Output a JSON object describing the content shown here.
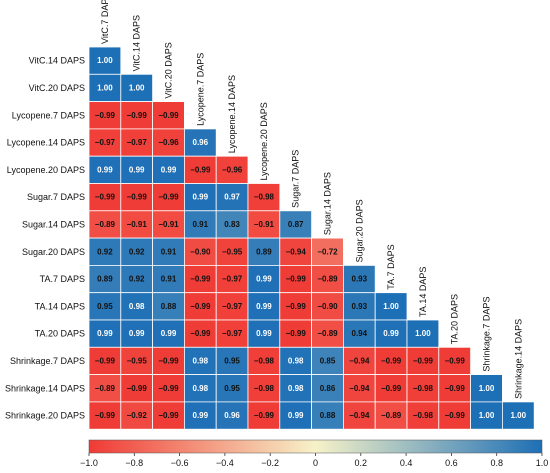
{
  "chart_data": {
    "type": "heatmap",
    "variables": [
      "VitC.7 DAPS",
      "VitC.14 DAPS",
      "VitC.20 DAPS",
      "Lycopene.7 DAPS",
      "Lycopene.14 DAPS",
      "Lycopene.20 DAPS",
      "Sugar.7 DAPS",
      "Sugar.14 DAPS",
      "Sugar.20 DAPS",
      "TA.7 DAPS",
      "TA.14 DAPS",
      "TA.20 DAPS",
      "Shrinkage.7 DAPS",
      "Shrinkage.14 DAPS",
      "Shrinkage.20 DAPS"
    ],
    "row_labels": [
      "VitC.14 DAPS",
      "VitC.20 DAPS",
      "Lycopene.7 DAPS",
      "Lycopene.14 DAPS",
      "Lycopene.20 DAPS",
      "Sugar.7 DAPS",
      "Sugar.14 DAPS",
      "Sugar.20 DAPS",
      "TA.7 DAPS",
      "TA.14 DAPS",
      "TA.20 DAPS",
      "Shrinkage.7 DAPS",
      "Shrinkage.14 DAPS",
      "Shrinkage.20 DAPS"
    ],
    "column_labels": [
      "VitC.7 DAPS",
      "VitC.14 DAPS",
      "VitC.20 DAPS",
      "Lycopene.7 DAPS",
      "Lycopene.14 DAPS",
      "Lycopene.20 DAPS",
      "Sugar.7 DAPS",
      "Sugar.14 DAPS",
      "Sugar.20 DAPS",
      "TA.7 DAPS",
      "TA.14 DAPS",
      "TA.20 DAPS",
      "Shrinkage.7 DAPS",
      "Shrinkage.14 DAPS"
    ],
    "values": [
      [
        1.0
      ],
      [
        1.0,
        1.0
      ],
      [
        -0.99,
        -0.99,
        -0.99
      ],
      [
        -0.97,
        -0.97,
        -0.96,
        0.96
      ],
      [
        0.99,
        0.99,
        0.99,
        -0.99,
        -0.96
      ],
      [
        -0.99,
        -0.99,
        -0.99,
        0.99,
        0.97,
        -0.98
      ],
      [
        -0.89,
        -0.91,
        -0.91,
        0.91,
        0.83,
        -0.91,
        0.87
      ],
      [
        0.92,
        0.92,
        0.91,
        -0.9,
        -0.95,
        0.89,
        -0.94,
        -0.72
      ],
      [
        0.89,
        0.92,
        0.91,
        -0.99,
        -0.97,
        0.99,
        -0.99,
        -0.89,
        0.93
      ],
      [
        0.95,
        0.98,
        0.88,
        -0.99,
        -0.97,
        0.99,
        -0.99,
        -0.9,
        0.93,
        1.0
      ],
      [
        0.99,
        0.99,
        0.99,
        -0.99,
        -0.97,
        0.99,
        -0.99,
        -0.89,
        0.94,
        0.99,
        1.0
      ],
      [
        -0.99,
        -0.95,
        -0.99,
        0.98,
        0.95,
        -0.98,
        0.98,
        0.85,
        -0.94,
        -0.99,
        -0.99,
        -0.99
      ],
      [
        -0.89,
        -0.99,
        -0.99,
        0.98,
        0.95,
        -0.98,
        0.98,
        0.86,
        -0.94,
        -0.99,
        -0.98,
        -0.99,
        1.0
      ],
      [
        -0.99,
        -0.92,
        -0.99,
        0.99,
        0.96,
        -0.99,
        0.99,
        0.88,
        -0.94,
        -0.89,
        -0.98,
        -0.99,
        1.0,
        1.0
      ]
    ],
    "colorbar": {
      "range": [
        -1.0,
        1.0
      ],
      "ticks": [
        "−1.0",
        "−0.8",
        "−0.6",
        "−0.4",
        "−0.2",
        "0",
        "0.2",
        "0.4",
        "0.6",
        "0.8",
        "1.0"
      ],
      "colors": {
        "negative": "#f03a35",
        "neutral": "#f6f2c8",
        "positive": "#1d6fb6"
      }
    }
  }
}
